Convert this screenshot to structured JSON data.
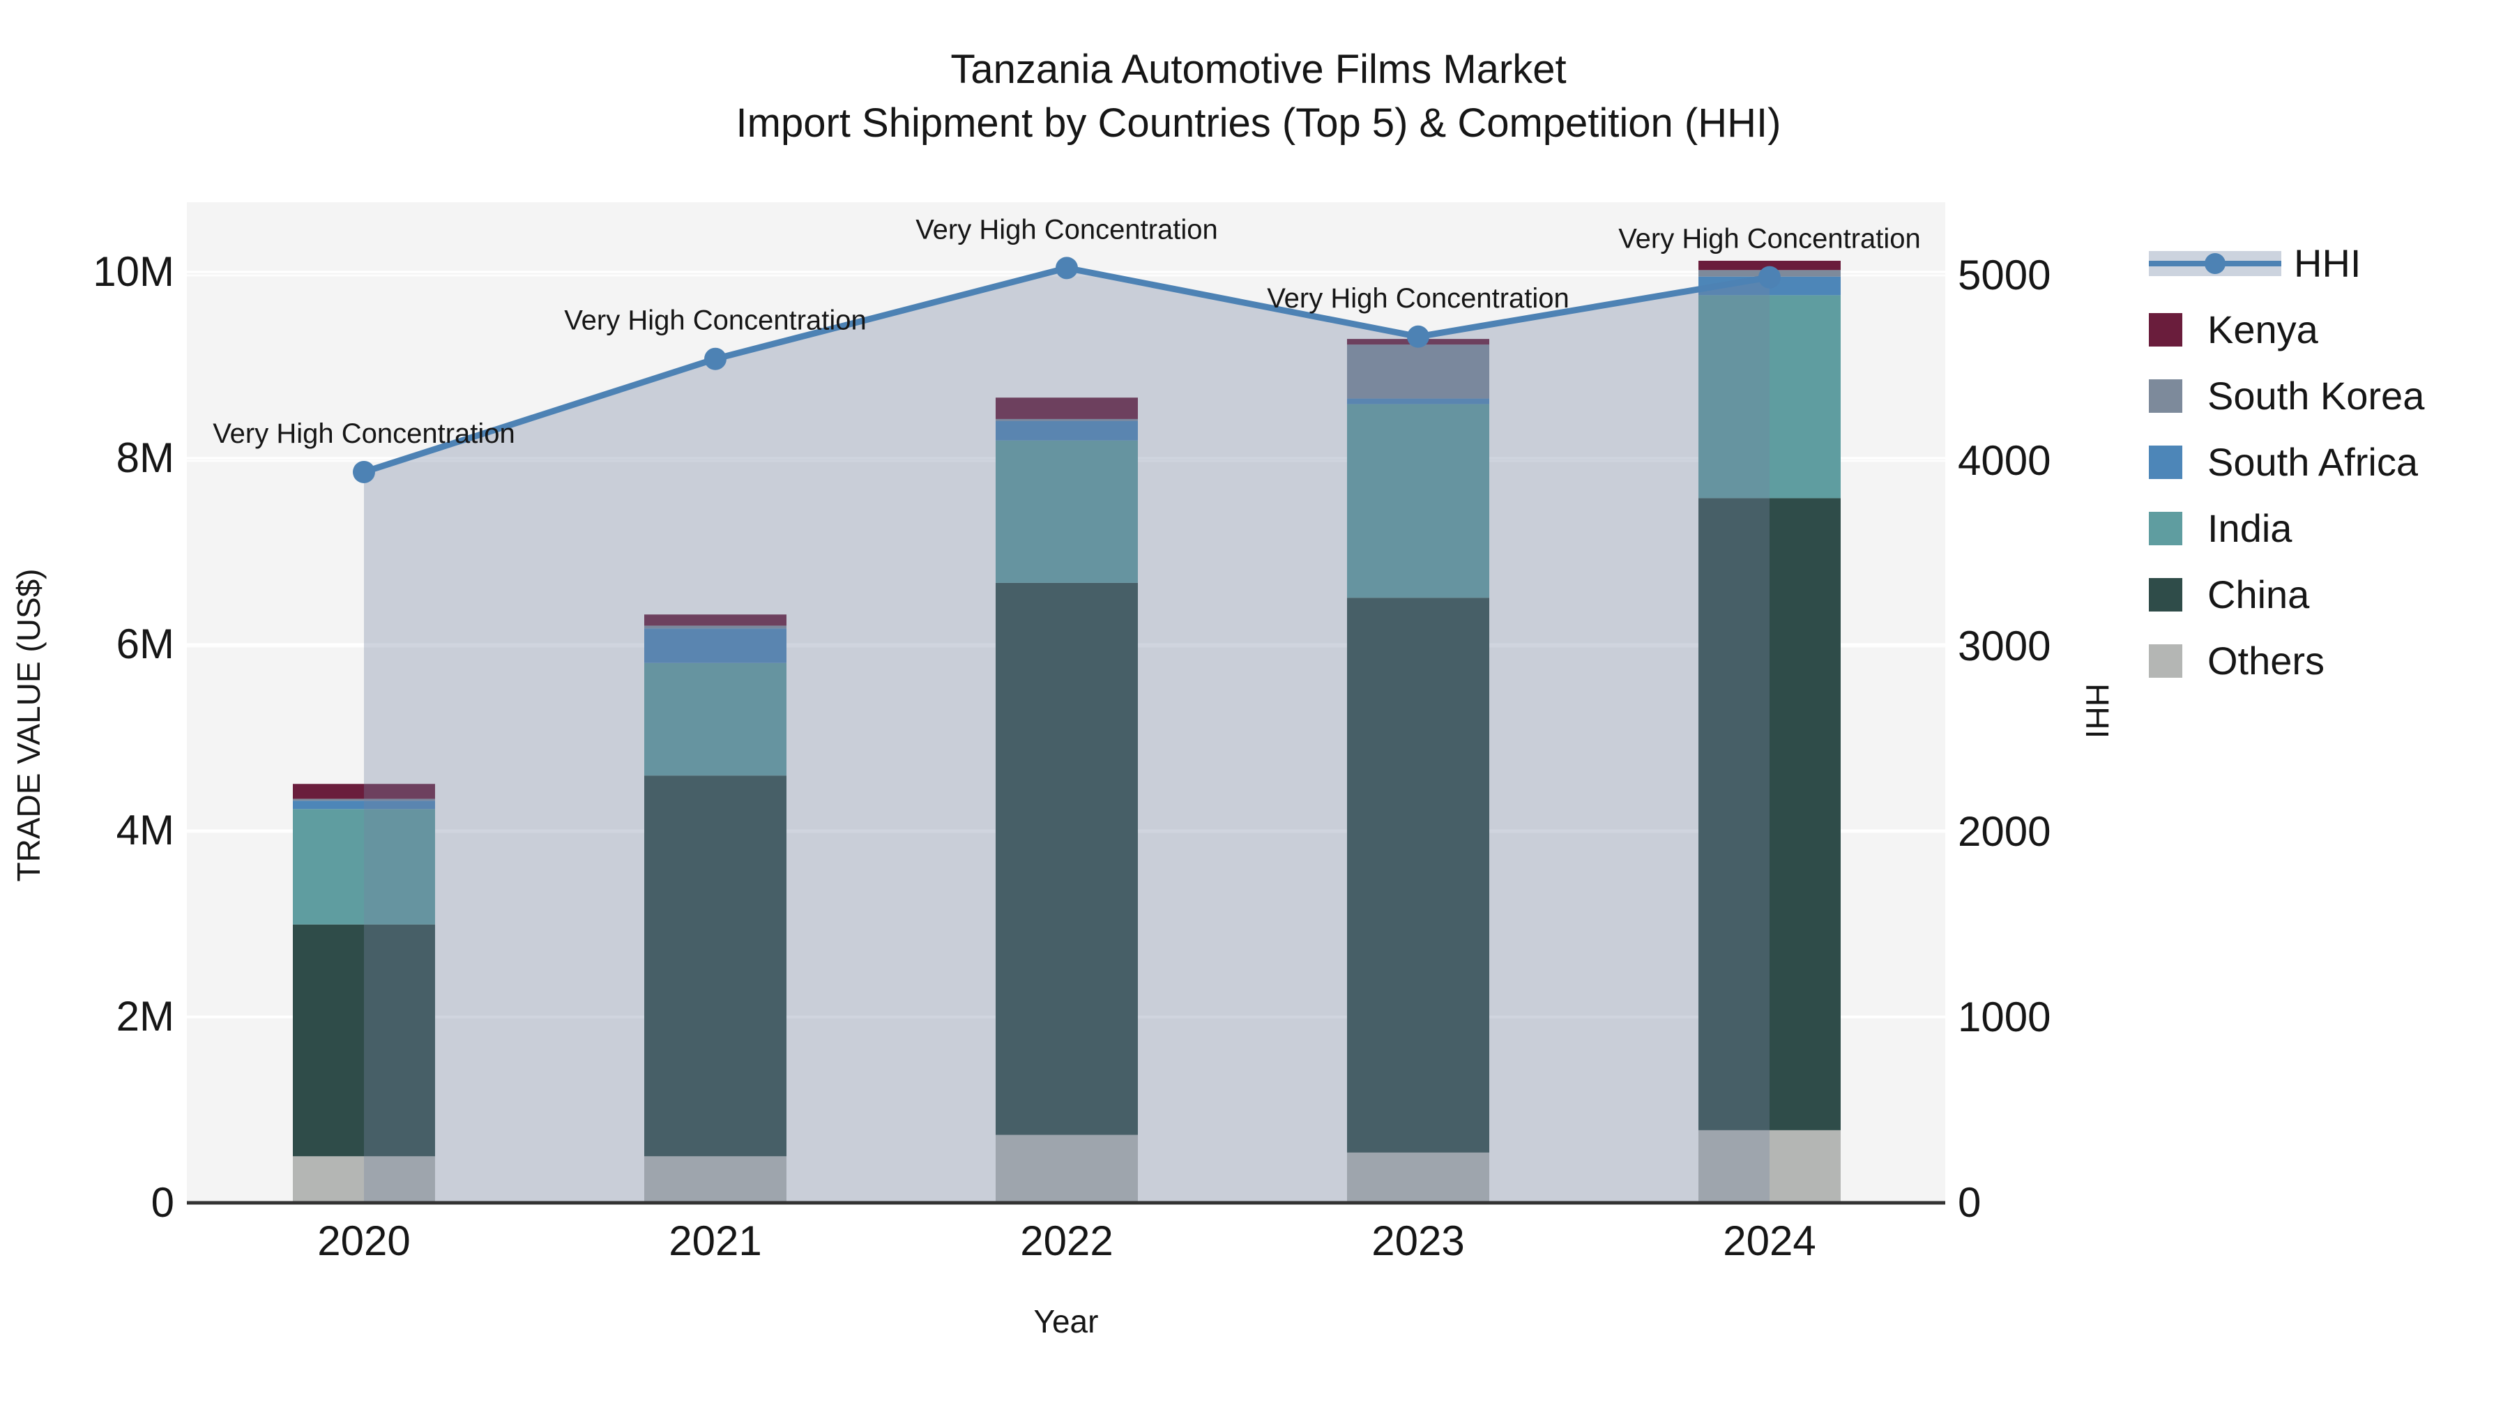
{
  "title": {
    "line1": "Tanzania Automotive Films Market",
    "line2": "Import Shipment by Countries (Top 5) & Competition (HHI)"
  },
  "axes": {
    "x": {
      "label": "Year",
      "ticks": [
        "2020",
        "2021",
        "2022",
        "2023",
        "2024"
      ]
    },
    "y_left": {
      "label": "TRADE VALUE (US$)",
      "ticks": [
        "0",
        "2M",
        "4M",
        "6M",
        "8M",
        "10M"
      ],
      "tick_values_m": [
        0,
        2,
        4,
        6,
        8,
        10
      ]
    },
    "y_right": {
      "label": "HHI",
      "ticks": [
        "0",
        "1000",
        "2000",
        "3000",
        "4000",
        "5000"
      ],
      "tick_values": [
        0,
        1000,
        2000,
        3000,
        4000,
        5000
      ]
    }
  },
  "legend": {
    "items": [
      {
        "label": "HHI",
        "type": "line",
        "color": "#4d82b4",
        "band_color": "#ccd3de"
      },
      {
        "label": "Kenya",
        "type": "swatch",
        "color": "#6a1d3c"
      },
      {
        "label": "South Korea",
        "type": "swatch",
        "color": "#7d8a9b"
      },
      {
        "label": "South Africa",
        "type": "swatch",
        "color": "#4d86b8"
      },
      {
        "label": "India",
        "type": "swatch",
        "color": "#5f9da0"
      },
      {
        "label": "China",
        "type": "swatch",
        "color": "#2f4c49"
      },
      {
        "label": "Others",
        "type": "swatch",
        "color": "#b4b6b4"
      }
    ]
  },
  "colors": {
    "plot_background": "#f4f4f4",
    "gridline": "#ffffff",
    "axis_line": "#333333",
    "hhi_line": "#4d82b4",
    "hhi_area_fill": "rgba(117,133,160,0.34)",
    "text": "#161616"
  },
  "chart_data": {
    "type": "bar",
    "subtype": "stacked-bars-with-dual-axis-line",
    "title": "Tanzania Automotive Films Market — Import Shipment by Countries (Top 5) & Competition (HHI)",
    "xlabel": "Year",
    "ylabel_left": "TRADE VALUE (US$)",
    "ylabel_right": "HHI",
    "categories": [
      "2020",
      "2021",
      "2022",
      "2023",
      "2024"
    ],
    "unit_left": "million US$",
    "ylim_left_m": [
      0,
      10.75
    ],
    "ylim_right": [
      0,
      5395
    ],
    "grid": true,
    "legend_position": "right",
    "series": [
      {
        "name": "Others",
        "color": "#b4b6b4",
        "values": [
          0.5,
          0.5,
          0.73,
          0.54,
          0.78
        ]
      },
      {
        "name": "China",
        "color": "#2f4c49",
        "values": [
          2.49,
          4.09,
          5.93,
          5.96,
          6.79
        ]
      },
      {
        "name": "India",
        "color": "#5f9da0",
        "values": [
          1.24,
          1.21,
          1.53,
          2.08,
          2.18
        ]
      },
      {
        "name": "South Africa",
        "color": "#4d86b8",
        "values": [
          0.09,
          0.37,
          0.21,
          0.06,
          0.2
        ]
      },
      {
        "name": "South Korea",
        "color": "#7d8a9b",
        "values": [
          0.02,
          0.03,
          0.02,
          0.58,
          0.07
        ]
      },
      {
        "name": "Kenya",
        "color": "#6a1d3c",
        "values": [
          0.16,
          0.12,
          0.23,
          0.06,
          0.1
        ]
      }
    ],
    "bar_totals_m": [
      4.5,
      6.32,
      8.65,
      9.28,
      10.12
    ],
    "line": {
      "name": "HHI",
      "color": "#4d82b4",
      "area_fill": "rgba(117,133,160,0.34)",
      "values": [
        3940,
        4550,
        5040,
        4670,
        4990
      ]
    },
    "annotations": [
      {
        "year": "2020",
        "text": "Very High Concentration"
      },
      {
        "year": "2021",
        "text": "Very High Concentration"
      },
      {
        "year": "2022",
        "text": "Very High Concentration"
      },
      {
        "year": "2023",
        "text": "Very High Concentration"
      },
      {
        "year": "2024",
        "text": "Very High Concentration"
      }
    ]
  }
}
